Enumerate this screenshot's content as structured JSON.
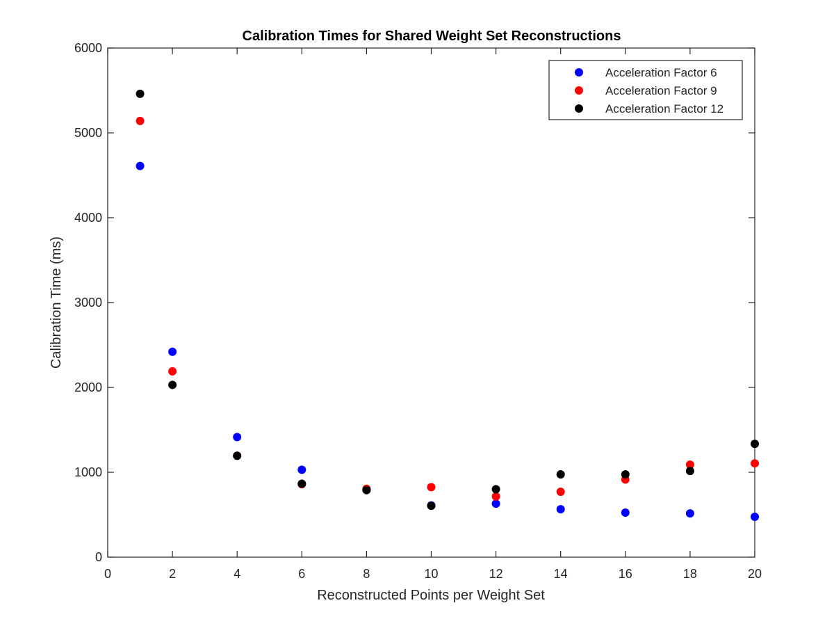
{
  "chart_data": {
    "type": "scatter",
    "title": "Calibration Times for Shared Weight Set Reconstructions",
    "xlabel": "Reconstructed Points per Weight Set",
    "ylabel": "Calibration Time (ms)",
    "xlim": [
      0,
      20
    ],
    "ylim": [
      0,
      6000
    ],
    "xticks": [
      0,
      2,
      4,
      6,
      8,
      10,
      12,
      14,
      16,
      18,
      20
    ],
    "yticks": [
      0,
      1000,
      2000,
      3000,
      4000,
      5000,
      6000
    ],
    "grid": false,
    "legend_position": "top-right",
    "x": [
      1,
      2,
      4,
      6,
      8,
      10,
      12,
      14,
      16,
      18,
      20
    ],
    "series": [
      {
        "name": "Acceleration Factor 6",
        "color": "#0000ff",
        "values": [
          4610,
          2420,
          1415,
          1030,
          800,
          610,
          630,
          565,
          525,
          515,
          475
        ]
      },
      {
        "name": "Acceleration Factor 9",
        "color": "#ff0000",
        "values": [
          5140,
          2190,
          1195,
          860,
          805,
          825,
          715,
          770,
          915,
          1090,
          1105
        ]
      },
      {
        "name": "Acceleration Factor 12",
        "color": "#000000",
        "values": [
          5460,
          2030,
          1195,
          865,
          790,
          605,
          800,
          975,
          975,
          1015,
          1335
        ]
      }
    ]
  }
}
